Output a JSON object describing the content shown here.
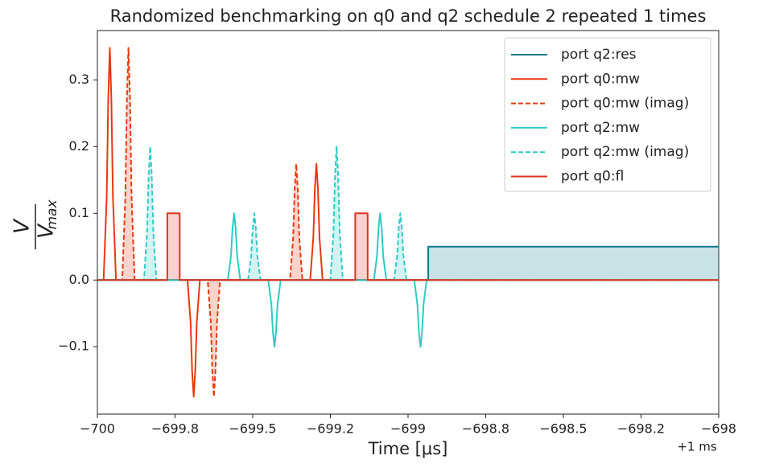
{
  "chart_data": {
    "type": "line",
    "title": "Randomized benchmarking on q0 and q2 schedule 2 repeated 1 times",
    "xlabel": "Time [μs]",
    "ylabel": {
      "numerator": "V",
      "denominator": "V",
      "subscript": "max"
    },
    "x_offset_label": "+1 ms",
    "xlim": [
      -700,
      -698
    ],
    "xticks": [
      {
        "value": -700,
        "label": "−700"
      },
      {
        "value": -699.75,
        "label": "−699.8"
      },
      {
        "value": -699.5,
        "label": "−699.5"
      },
      {
        "value": -699.25,
        "label": "−699.2"
      },
      {
        "value": -699,
        "label": "−699"
      },
      {
        "value": -698.75,
        "label": "−698.8"
      },
      {
        "value": -698.5,
        "label": "−698.5"
      },
      {
        "value": -698.25,
        "label": "−698.2"
      },
      {
        "value": -698,
        "label": "−698"
      }
    ],
    "ylim": [
      -0.201,
      0.374
    ],
    "yticks": [
      {
        "value": -0.1,
        "label": "−0.1"
      },
      {
        "value": 0,
        "label": "0.0"
      },
      0.1,
      0.2,
      0.3
    ],
    "legend": "upper right",
    "series": [
      {
        "name": "port q2:res",
        "color": "#0b7b8e",
        "dash": false,
        "fill": true,
        "x": [
          -700,
          -698.935,
          -698.935,
          -698
        ],
        "values": [
          0,
          0,
          0.05,
          0.05
        ]
      },
      {
        "name": "port q0:mw",
        "color": "#e8390e",
        "dash": false,
        "fill": false,
        "x": [
          -700,
          -699.98,
          -699.97,
          -699.965,
          -699.96,
          -699.955,
          -699.95,
          -699.94,
          -699.71,
          -699.7,
          -699.695,
          -699.69,
          -699.685,
          -699.68,
          -699.67,
          -699.315,
          -699.305,
          -699.3,
          -699.295,
          -699.29,
          -699.285,
          -699.275,
          -698
        ],
        "values": [
          0,
          0,
          0.125,
          0.271,
          0.348,
          0.271,
          0.125,
          0,
          0,
          -0.063,
          -0.137,
          -0.175,
          -0.137,
          -0.063,
          0,
          0,
          0.063,
          0.136,
          0.174,
          0.136,
          0.063,
          0,
          0
        ]
      },
      {
        "name": "port q0:mw (imag)",
        "color": "#e8390e",
        "dash": true,
        "fill": true,
        "x": [
          -700,
          -699.92,
          -699.91,
          -699.905,
          -699.9,
          -699.895,
          -699.89,
          -699.88,
          -699.645,
          -699.635,
          -699.63,
          -699.625,
          -699.62,
          -699.615,
          -699.605,
          -699.38,
          -699.37,
          -699.365,
          -699.36,
          -699.355,
          -699.35,
          -699.34,
          -698
        ],
        "values": [
          0,
          0,
          0.125,
          0.271,
          0.348,
          0.271,
          0.125,
          0,
          0,
          -0.063,
          -0.137,
          -0.175,
          -0.137,
          -0.063,
          0,
          0,
          0.063,
          0.136,
          0.174,
          0.136,
          0.063,
          0,
          0
        ]
      },
      {
        "name": "port q2:mw",
        "color": "#2ecbc5",
        "dash": false,
        "fill": false,
        "x": [
          -700,
          -699.58,
          -699.57,
          -699.565,
          -699.56,
          -699.555,
          -699.55,
          -699.54,
          -699.45,
          -699.44,
          -699.435,
          -699.43,
          -699.425,
          -699.42,
          -699.41,
          -699.11,
          -699.1,
          -699.095,
          -699.09,
          -699.085,
          -699.08,
          -699.07,
          -698.98,
          -698.97,
          -698.965,
          -698.96,
          -698.955,
          -698.95,
          -698.94,
          -698
        ],
        "values": [
          0,
          0,
          0.036,
          0.078,
          0.1,
          0.078,
          0.036,
          0,
          0,
          -0.036,
          -0.078,
          -0.1,
          -0.078,
          -0.036,
          0,
          0,
          0.036,
          0.078,
          0.1,
          0.078,
          0.036,
          0,
          0,
          -0.036,
          -0.078,
          -0.1,
          -0.078,
          -0.036,
          0,
          0
        ]
      },
      {
        "name": "port q2:mw (imag)",
        "color": "#2ecbc5",
        "dash": true,
        "fill": true,
        "x": [
          -700,
          -699.85,
          -699.84,
          -699.835,
          -699.83,
          -699.825,
          -699.82,
          -699.81,
          -699.515,
          -699.505,
          -699.5,
          -699.495,
          -699.49,
          -699.485,
          -699.475,
          -699.25,
          -699.24,
          -699.235,
          -699.23,
          -699.225,
          -699.22,
          -699.21,
          -699.045,
          -699.035,
          -699.03,
          -699.025,
          -699.02,
          -699.015,
          -699.005,
          -698
        ],
        "values": [
          0,
          0,
          0.072,
          0.156,
          0.2,
          0.156,
          0.072,
          0,
          0,
          0.036,
          0.078,
          0.1,
          0.078,
          0.036,
          0,
          0,
          0.072,
          0.156,
          0.2,
          0.156,
          0.072,
          0,
          0,
          0.036,
          0.078,
          0.1,
          0.078,
          0.036,
          0,
          0
        ]
      },
      {
        "name": "port q0:fl",
        "color": "#dd3320",
        "dash": false,
        "fill": true,
        "x": [
          -700,
          -699.775,
          -699.775,
          -699.735,
          -699.735,
          -699.17,
          -699.17,
          -699.13,
          -699.13,
          -698
        ],
        "values": [
          0,
          0,
          0.1,
          0.1,
          0,
          0,
          0.1,
          0.1,
          0,
          0
        ]
      }
    ]
  }
}
